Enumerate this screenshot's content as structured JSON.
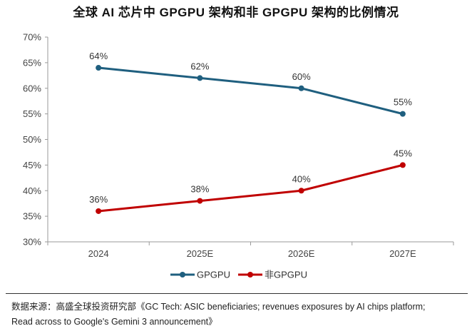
{
  "title": "全球 AI 芯片中 GPGPU 架构和非 GPGPU 架构的比例情况",
  "source": {
    "line1": "数据来源：高盛全球投资研究部《GC Tech: ASIC beneficiaries; revenues exposures by AI chips platform;",
    "line2": "Read across to Google's Gemini 3 announcement》"
  },
  "chart_data": {
    "type": "line",
    "categories": [
      "2024",
      "2025E",
      "2026E",
      "2027E"
    ],
    "series": [
      {
        "name": "GPGPU",
        "values": [
          64,
          62,
          60,
          55
        ],
        "labels": [
          "64%",
          "62%",
          "60%",
          "55%"
        ],
        "color": "#1f5f7f"
      },
      {
        "name": "非GPGPU",
        "values": [
          36,
          38,
          40,
          45
        ],
        "labels": [
          "36%",
          "38%",
          "40%",
          "45%"
        ],
        "color": "#c00000"
      }
    ],
    "ylim": [
      30,
      70
    ],
    "ytick_step": 5,
    "yticks": [
      "30%",
      "35%",
      "40%",
      "45%",
      "50%",
      "55%",
      "60%",
      "65%",
      "70%"
    ],
    "xlabel": "",
    "ylabel": "",
    "grid": false,
    "legend": "bottom"
  }
}
